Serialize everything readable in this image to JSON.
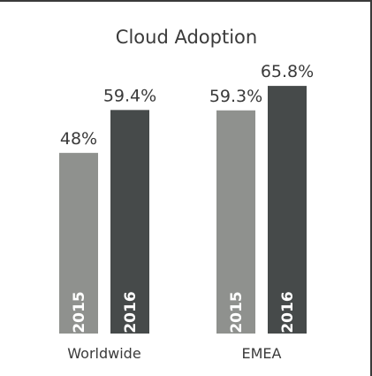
{
  "chart_data": {
    "type": "bar",
    "title": "Cloud Adoption",
    "categories": [
      "Worldwide",
      "EMEA"
    ],
    "series": [
      {
        "name": "2015",
        "color": "#8f918e",
        "values": [
          48,
          59.3
        ],
        "labels": [
          "48%",
          "59.3%"
        ]
      },
      {
        "name": "2016",
        "color": "#464a4a",
        "values": [
          59.4,
          65.8
        ],
        "labels": [
          "59.4%",
          "65.8%"
        ]
      }
    ],
    "xlabel": "",
    "ylabel": "",
    "ylim": [
      0,
      67
    ],
    "grid": false,
    "legend": "inside bars"
  }
}
